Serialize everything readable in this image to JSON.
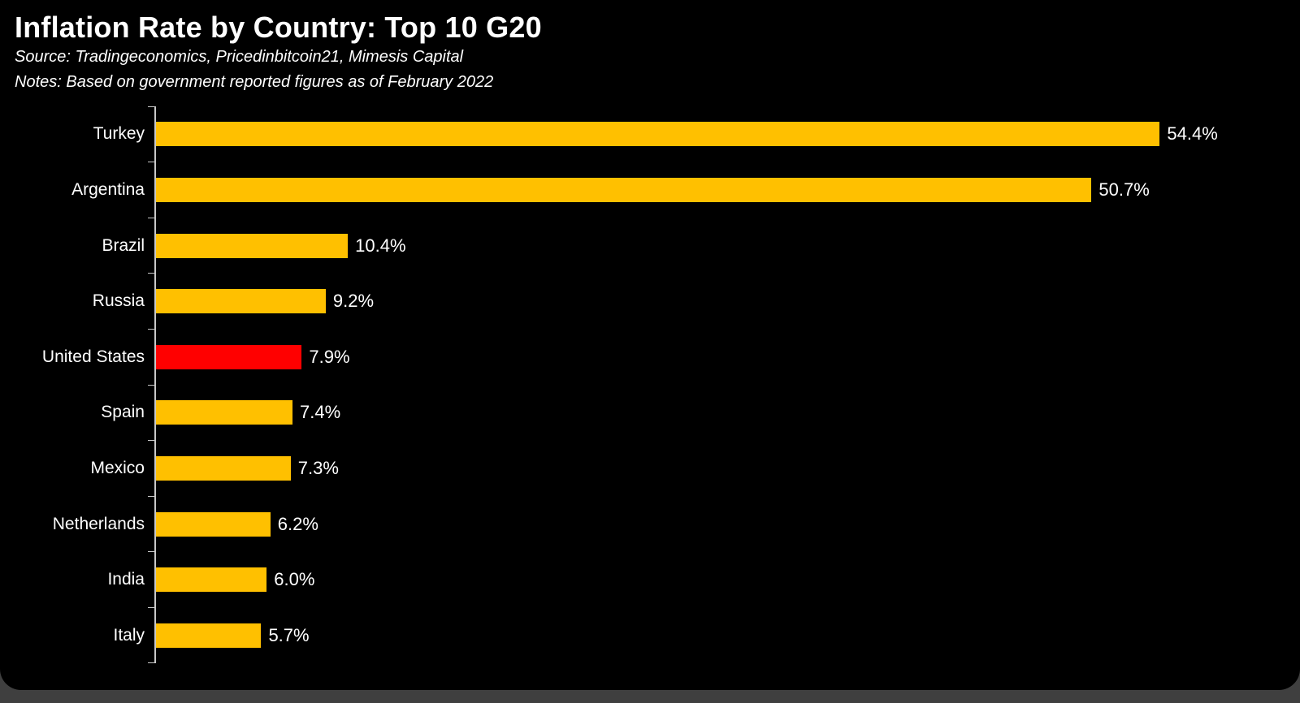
{
  "header": {
    "title": "Inflation Rate by Country: Top 10 G20",
    "source": "Source: Tradingeconomics, Pricedinbitcoin21, Mimesis Capital",
    "notes": "Notes: Based on government reported figures as of February 2022"
  },
  "colors": {
    "background": "#000000",
    "bar_default": "#FFC000",
    "bar_highlight": "#FF0000",
    "text": "#FFFFFF",
    "axis": "#C8C8C8"
  },
  "chart_data": {
    "type": "bar",
    "orientation": "horizontal",
    "title": "Inflation Rate by Country: Top 10 G20",
    "xlabel": "",
    "ylabel": "",
    "categories": [
      "Turkey",
      "Argentina",
      "Brazil",
      "Russia",
      "United States",
      "Spain",
      "Mexico",
      "Netherlands",
      "India",
      "Italy"
    ],
    "values": [
      54.4,
      50.7,
      10.4,
      9.2,
      7.9,
      7.4,
      7.3,
      6.2,
      6.0,
      5.7
    ],
    "value_labels": [
      "54.4%",
      "50.7%",
      "10.4%",
      "9.2%",
      "7.9%",
      "7.4%",
      "7.3%",
      "6.2%",
      "6.0%",
      "5.7%"
    ],
    "highlight_category": "United States",
    "xlim": [
      0,
      62
    ],
    "grid": false,
    "legend": false
  }
}
